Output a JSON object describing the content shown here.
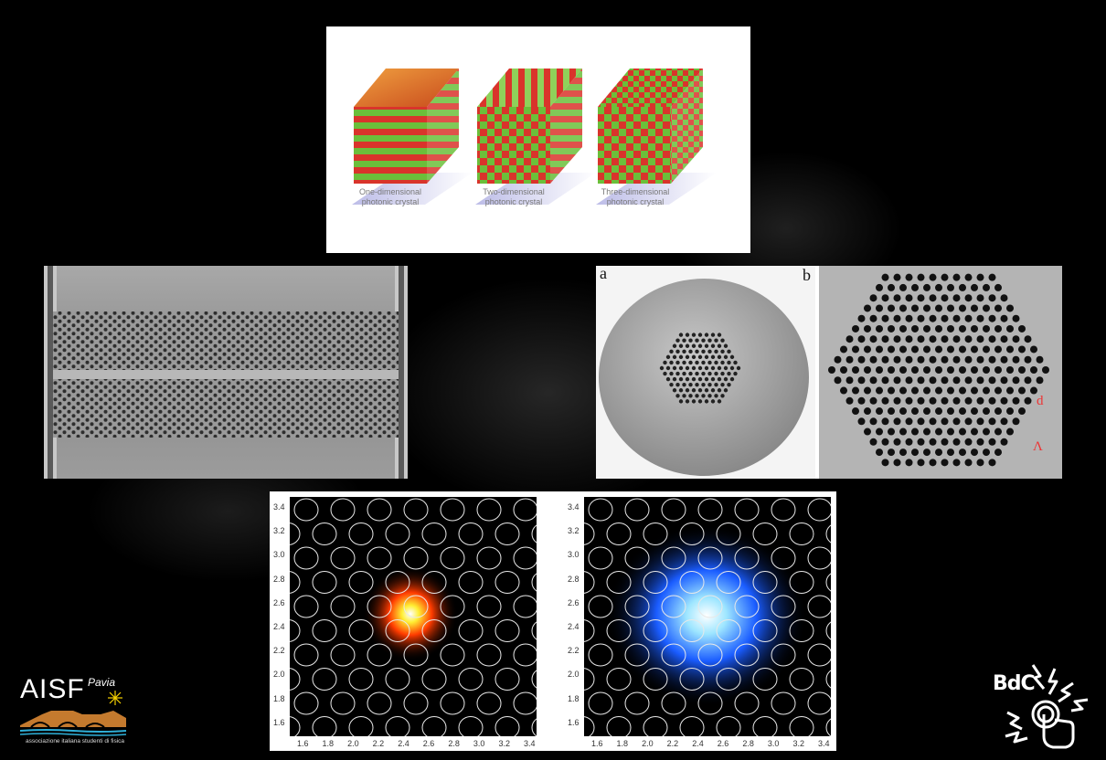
{
  "crystals": {
    "items": [
      {
        "line1": "One-dimensional",
        "line2": "photonic crystal"
      },
      {
        "line1": "Two-dimensional",
        "line2": "photonic crystal"
      },
      {
        "line1": "Three-dimensional",
        "line2": "photonic crystal"
      }
    ],
    "colors": {
      "red": "#d9342b",
      "green": "#6bbf3a",
      "orange": "#e07a2c"
    }
  },
  "fiber": {
    "label_a": "a",
    "label_b": "b",
    "label_d": "d",
    "label_lambda": "Λ"
  },
  "modes": {
    "y_ticks": [
      "3.4",
      "3.2",
      "3.0",
      "2.8",
      "2.6",
      "2.4",
      "2.2",
      "2.0",
      "1.8",
      "1.6"
    ],
    "x_ticks": [
      "1.6",
      "1.8",
      "2.0",
      "2.2",
      "2.4",
      "2.6",
      "2.8",
      "3.0",
      "3.2",
      "3.4"
    ],
    "left_color": "#ff3b00",
    "right_color": "#1a5cff"
  },
  "logos": {
    "aisf_name": "AISF",
    "aisf_city": "Pavia",
    "aisf_subtitle": "associazione italiana studenti di fisica",
    "bdc_name": "BdC"
  }
}
